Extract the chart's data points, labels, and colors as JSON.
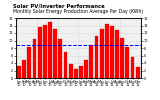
{
  "title_line1": "Solar PV/Inverter Performance",
  "title_line2": "Monthly Solar Energy Production Average Per Day (KWh)",
  "months": [
    "Jan\n10",
    "Feb\n10",
    "Mar\n10",
    "Apr\n10",
    "May\n10",
    "Jun\n10",
    "Jul\n10",
    "Aug\n10",
    "Sep\n10",
    "Oct\n10",
    "Nov\n10",
    "Dec\n10",
    "Jan\n11",
    "Feb\n11",
    "Mar\n11",
    "Apr\n11",
    "May\n11",
    "Jun\n11",
    "Jul\n11",
    "Aug\n11",
    "Sep\n11",
    "Oct\n11",
    "Nov\n11",
    "Dec\n11"
  ],
  "values": [
    3.1,
    4.8,
    8.2,
    10.5,
    13.5,
    14.2,
    15.0,
    13.2,
    10.5,
    7.0,
    3.8,
    2.5,
    3.3,
    4.9,
    8.8,
    11.2,
    13.0,
    14.5,
    13.8,
    12.8,
    10.8,
    8.2,
    5.5,
    3.0
  ],
  "bar_color": "#ff0000",
  "bar_edge_color": "#cc0000",
  "avg_line_color": "#0000ff",
  "avg_value": 8.8,
  "background_color": "#ffffff",
  "plot_bg_color": "#f0f0f0",
  "grid_color": "#bbbbbb",
  "ylim": [
    0,
    16
  ],
  "yticks": [
    0,
    2,
    4,
    6,
    8,
    10,
    12,
    14,
    16
  ],
  "title_fontsize": 3.8,
  "tick_fontsize": 2.5
}
